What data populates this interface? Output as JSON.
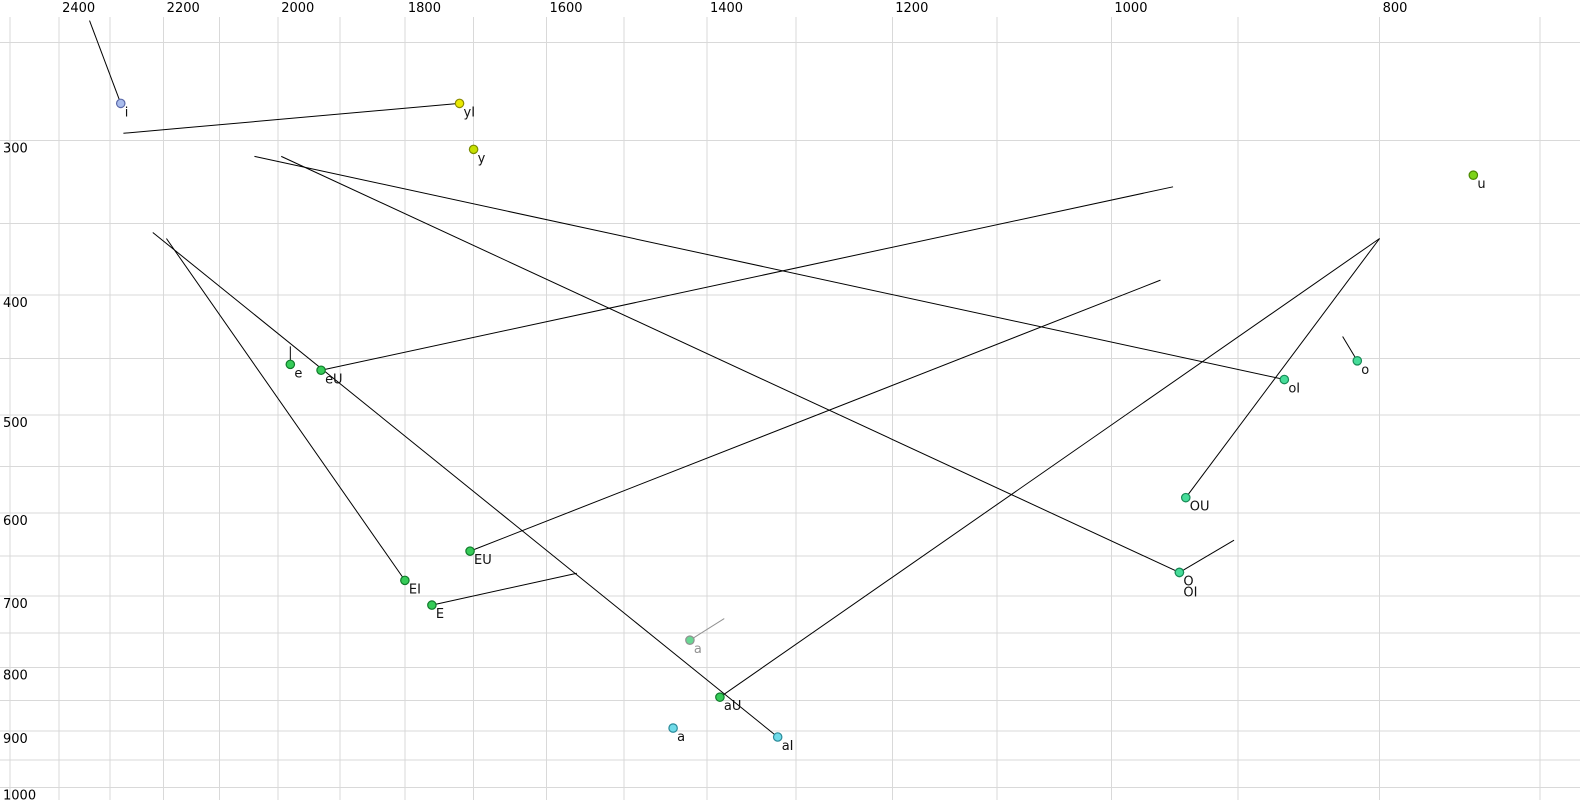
{
  "chart_data": {
    "type": "scatter",
    "title": "",
    "xlabel": "",
    "ylabel": "",
    "x_axis": {
      "ticks": [
        2400,
        2200,
        2000,
        1800,
        1600,
        1400,
        1200,
        1000,
        800
      ],
      "minor_gridline_step_hz": 100,
      "gridline_range": [
        2500,
        700
      ],
      "scale": "log",
      "reversed": true,
      "pixel_range_values": [
        2512,
        677
      ]
    },
    "y_axis": {
      "ticks": [
        300,
        400,
        500,
        600,
        700,
        800,
        900,
        1000
      ],
      "minor_gridline_step_hz": 50,
      "gridline_range": [
        250,
        1000
      ],
      "scale": "log",
      "inverted": true,
      "pixel_range_values": [
        238,
        1023
      ]
    },
    "grid": true,
    "legend": "none",
    "style": {
      "background": "#ffffff",
      "grid_color": "#d9d9d9",
      "tick_color": "#000000",
      "trajectory_color": "#000000",
      "muted_color": "#919191",
      "label_color": "#111111",
      "green": "#36cb58",
      "mint": "#46dc99",
      "cyan": "#6fdbe9",
      "yellow": "#e9e900",
      "yellow_green": "#c6e000",
      "lime": "#7cd318",
      "blue": "#a9bcec"
    },
    "points": [
      {
        "id": "i",
        "label": "i",
        "f2": 2280,
        "f1": 280,
        "trajectory_end": {
          "f2": 2340,
          "f1": 240
        },
        "fill": "#a9bcec",
        "stroke": "#5a68a8"
      },
      {
        "id": "yI",
        "label": "yI",
        "f2": 1720,
        "f1": 280,
        "trajectory_end": {
          "f2": 2275,
          "f1": 296
        },
        "fill": "#e9e900",
        "stroke": "#8a8a00"
      },
      {
        "id": "y",
        "label": "y",
        "f2": 1700,
        "f1": 305,
        "trajectory_end": null,
        "fill": "#c6e000",
        "stroke": "#7a8c00"
      },
      {
        "id": "u",
        "label": "u",
        "f2": 740,
        "f1": 320,
        "trajectory_end": null,
        "fill": "#7cd318",
        "stroke": "#4a8700"
      },
      {
        "id": "e",
        "label": "e",
        "f2": 1980,
        "f1": 455,
        "trajectory_end": {
          "f2": 1980,
          "f1": 440
        },
        "fill": "#36cb58",
        "stroke": "#0f7a2a"
      },
      {
        "id": "eU",
        "label": "eU",
        "f2": 1930,
        "f1": 460,
        "trajectory_end": {
          "f2": 950,
          "f1": 327
        },
        "fill": "#36cb58",
        "stroke": "#0f7a2a"
      },
      {
        "id": "o",
        "label": "o",
        "f2": 815,
        "f1": 452,
        "trajectory_end": {
          "f2": 825,
          "f1": 432
        },
        "fill": "#46dc99",
        "stroke": "#188a56"
      },
      {
        "id": "oI",
        "label": "oI",
        "f2": 866,
        "f1": 468,
        "trajectory_end": {
          "f2": 2040,
          "f1": 309
        },
        "fill": "#46dc99",
        "stroke": "#188a56"
      },
      {
        "id": "EI",
        "label": "EI",
        "f2": 1800,
        "f1": 680,
        "trajectory_end": {
          "f2": 2195,
          "f1": 360
        },
        "fill": "#36cb58",
        "stroke": "#0f7a2a"
      },
      {
        "id": "EU",
        "label": "EU",
        "f2": 1705,
        "f1": 644,
        "trajectory_end": {
          "f2": 960,
          "f1": 389
        },
        "fill": "#36cb58",
        "stroke": "#0f7a2a"
      },
      {
        "id": "OU",
        "label": "OU",
        "f2": 940,
        "f1": 583,
        "trajectory_end": {
          "f2": 800,
          "f1": 360
        },
        "fill": "#46dc99",
        "stroke": "#188a56"
      },
      {
        "id": "O",
        "label": "O",
        "f2": 945,
        "f1": 670,
        "trajectory_end": {
          "f2": 903,
          "f1": 631
        },
        "fill": "#46dc99",
        "stroke": "#188a56"
      },
      {
        "id": "OI",
        "label": "OI",
        "f2": 945,
        "f1": 670,
        "trajectory_end": {
          "f2": 1995,
          "f1": 309
        },
        "fill": "#46dc99",
        "stroke": "#188a56",
        "label_dy": 24
      },
      {
        "id": "E",
        "label": "E",
        "f2": 1760,
        "f1": 712,
        "trajectory_end": {
          "f2": 1560,
          "f1": 671
        },
        "fill": "#36cb58",
        "stroke": "#0f7a2a"
      },
      {
        "id": "a_gray",
        "label": "a",
        "f2": 1420,
        "f1": 760,
        "trajectory_end": {
          "f2": 1380,
          "f1": 730
        },
        "fill": "#69d793",
        "stroke": "#919191",
        "line_color": "#919191",
        "text_color": "#919191",
        "muted": true
      },
      {
        "id": "aU",
        "label": "aU",
        "f2": 1385,
        "f1": 845,
        "trajectory_end": {
          "f2": 800,
          "f1": 360
        },
        "fill": "#36cb58",
        "stroke": "#0f7a2a"
      },
      {
        "id": "a",
        "label": "a",
        "f2": 1440,
        "f1": 895,
        "trajectory_end": null,
        "fill": "#6fdbe9",
        "stroke": "#2b8a99"
      },
      {
        "id": "aI",
        "label": "aI",
        "f2": 1320,
        "f1": 910,
        "trajectory_end": {
          "f2": 2220,
          "f1": 356
        },
        "fill": "#6fdbe9",
        "stroke": "#2b8a99"
      }
    ]
  }
}
